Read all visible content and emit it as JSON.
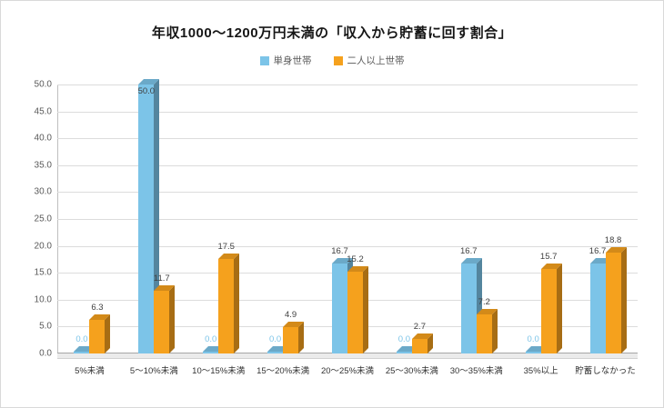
{
  "panel": {
    "title": "年収1000〜1200万円未満の「収入から貯蓄に回す割合」"
  },
  "chart_data": {
    "type": "bar",
    "title": "年収1000〜1200万円未満の「収入から貯蓄に回す割合」",
    "categories": [
      "5%未満",
      "5〜10%未満",
      "10〜15%未満",
      "15〜20%未満",
      "20〜25%未満",
      "25〜30%未満",
      "30〜35%未満",
      "35%以上",
      "貯蓄しなかった"
    ],
    "series": [
      {
        "name": "単身世帯",
        "color": "#7CC4E8",
        "values": [
          0.0,
          50.0,
          0.0,
          0.0,
          16.7,
          0.0,
          16.7,
          0.0,
          16.7
        ]
      },
      {
        "name": "二人以上世帯",
        "color": "#F5A11D",
        "values": [
          6.3,
          11.7,
          17.5,
          4.9,
          15.2,
          2.7,
          7.2,
          15.7,
          18.8
        ]
      }
    ],
    "ylim": [
      0,
      50
    ],
    "ytick_step": 5,
    "ytick_format_decimals": 1,
    "grid": true,
    "legend_position": "top",
    "xlabel": "",
    "ylabel": "",
    "colors": {
      "grid": "#dcdcdc",
      "axis_text": "#595959",
      "value_label": "#404040",
      "background": "#ffffff",
      "border": "#d9d9d9"
    }
  }
}
